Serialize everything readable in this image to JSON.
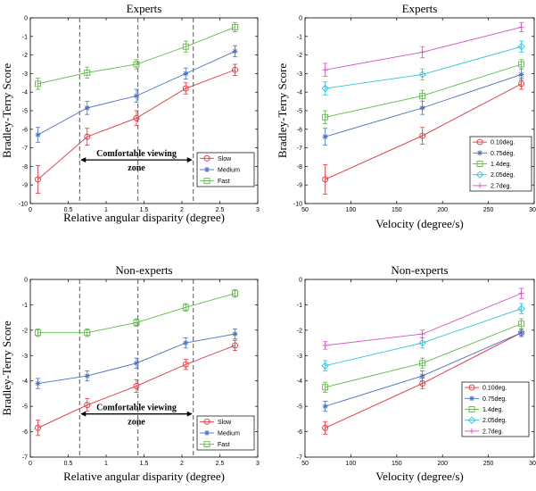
{
  "chart_data": [
    {
      "type": "line",
      "title": "Experts",
      "xlabel": "Relative angular disparity (degree)",
      "ylabel": "Bradley-Terry Score",
      "xlim": [
        0,
        3
      ],
      "ylim": [
        -10,
        0
      ],
      "xticks": [
        0,
        0.5,
        1,
        1.5,
        2,
        2.5,
        3
      ],
      "xtick_labels": [
        "0",
        "0.5",
        "1",
        "1.5",
        "2",
        "2.5",
        "3"
      ],
      "yticks": [
        -10,
        -9,
        -8,
        -7,
        -6,
        -5,
        -4,
        -3,
        -2,
        -1,
        0
      ],
      "ytick_labels": [
        "-10",
        "-9",
        "-8",
        "-7",
        "-6",
        "-5",
        "-4",
        "-3",
        "-2",
        "-1",
        "0"
      ],
      "grid": false,
      "legend_position": "bottom-right",
      "x": [
        0.1,
        0.75,
        1.4,
        2.05,
        2.7
      ],
      "series": [
        {
          "name": "Slow",
          "color": "#e8333a",
          "marker": "circle",
          "values": [
            -8.7,
            -6.4,
            -5.4,
            -3.8,
            -2.8
          ],
          "errors": [
            0.75,
            0.45,
            0.4,
            0.3,
            0.3
          ]
        },
        {
          "name": "Medium",
          "color": "#4a6fc2",
          "marker": "star",
          "values": [
            -6.3,
            -4.85,
            -4.2,
            -3.0,
            -1.8
          ],
          "errors": [
            0.4,
            0.35,
            0.35,
            0.3,
            0.3
          ]
        },
        {
          "name": "Fast",
          "color": "#5dbb46",
          "marker": "square",
          "values": [
            -3.55,
            -2.95,
            -2.5,
            -1.55,
            -0.5
          ],
          "errors": [
            0.3,
            0.3,
            0.25,
            0.3,
            0.25
          ]
        }
      ],
      "vlines": [
        0.65,
        1.42,
        2.15
      ],
      "annotation": {
        "line1": "Comfortable viewing",
        "line2": "zone",
        "from": 0.65,
        "to": 2.15,
        "y": -7.65
      }
    },
    {
      "type": "line",
      "title": "Experts",
      "xlabel": "Velocity (degree/s)",
      "ylabel": "Bradley-Terry Score",
      "xlim": [
        50,
        300
      ],
      "ylim": [
        -10,
        0
      ],
      "xticks": [
        50,
        100,
        150,
        200,
        250,
        300
      ],
      "xtick_labels": [
        "50",
        "100",
        "150",
        "200",
        "250",
        "300"
      ],
      "yticks": [
        -10,
        -9,
        -8,
        -7,
        -6,
        -5,
        -4,
        -3,
        -2,
        -1,
        0
      ],
      "ytick_labels": [
        "-10",
        "-9",
        "-8",
        "-7",
        "-6",
        "-5",
        "-4",
        "-3",
        "-2",
        "-1",
        "0"
      ],
      "grid": false,
      "legend_position": "bottom-right",
      "x": [
        72,
        178,
        286
      ],
      "series": [
        {
          "name": "0.10deg.",
          "color": "#e8333a",
          "marker": "circle",
          "values": [
            -8.7,
            -6.35,
            -3.55
          ],
          "errors": [
            0.8,
            0.45,
            0.3
          ]
        },
        {
          "name": "0.75deg.",
          "color": "#4a6fc2",
          "marker": "star",
          "values": [
            -6.4,
            -4.85,
            -3.05
          ],
          "errors": [
            0.45,
            0.35,
            0.3
          ]
        },
        {
          "name": "1.4deg.",
          "color": "#5dbb46",
          "marker": "square",
          "values": [
            -5.35,
            -4.2,
            -2.5
          ],
          "errors": [
            0.35,
            0.3,
            0.25
          ]
        },
        {
          "name": "2.05deg.",
          "color": "#2ec5df",
          "marker": "diamond",
          "values": [
            -3.8,
            -3.05,
            -1.55
          ],
          "errors": [
            0.35,
            0.3,
            0.3
          ]
        },
        {
          "name": "2.7deg.",
          "color": "#d357c4",
          "marker": "plus",
          "values": [
            -2.8,
            -1.85,
            -0.5
          ],
          "errors": [
            0.35,
            0.3,
            0.25
          ]
        }
      ]
    },
    {
      "type": "line",
      "title": "Non-experts",
      "xlabel": "Relative angular disparity (degree)",
      "ylabel": "Bradley-Terry Score",
      "xlim": [
        0,
        3
      ],
      "ylim": [
        -7,
        0
      ],
      "xticks": [
        0,
        0.5,
        1,
        1.5,
        2,
        2.5,
        3
      ],
      "xtick_labels": [
        "0",
        "0.5",
        "1",
        "1.5",
        "2",
        "2.5",
        "3"
      ],
      "yticks": [
        -7,
        -6,
        -5,
        -4,
        -3,
        -2,
        -1,
        0
      ],
      "ytick_labels": [
        "-7",
        "-6",
        "-5",
        "-4",
        "-3",
        "-2",
        "-1",
        "0"
      ],
      "grid": false,
      "legend_position": "bottom-right",
      "x": [
        0.1,
        0.75,
        1.4,
        2.05,
        2.7
      ],
      "series": [
        {
          "name": "Slow",
          "color": "#e8333a",
          "marker": "circle",
          "values": [
            -5.85,
            -4.95,
            -4.2,
            -3.35,
            -2.6
          ],
          "errors": [
            0.3,
            0.25,
            0.25,
            0.2,
            0.2
          ]
        },
        {
          "name": "Medium",
          "color": "#4a6fc2",
          "marker": "star",
          "values": [
            -4.1,
            -3.8,
            -3.3,
            -2.5,
            -2.15
          ],
          "errors": [
            0.2,
            0.2,
            0.2,
            0.2,
            0.2
          ]
        },
        {
          "name": "Fast",
          "color": "#5dbb46",
          "marker": "square",
          "values": [
            -2.1,
            -2.1,
            -1.7,
            -1.1,
            -0.55
          ],
          "errors": [
            0.15,
            0.15,
            0.15,
            0.15,
            0.15
          ]
        }
      ],
      "vlines": [
        0.65,
        1.42,
        2.15
      ],
      "annotation": {
        "line1": "Comfortable viewing",
        "line2": "zone",
        "from": 0.65,
        "to": 2.15,
        "y": -5.3
      }
    },
    {
      "type": "line",
      "title": "Non-experts",
      "xlabel": "Velocity (degree/s)",
      "ylabel": "",
      "xlim": [
        50,
        300
      ],
      "ylim": [
        -7,
        0
      ],
      "xticks": [
        50,
        100,
        150,
        200,
        250,
        300
      ],
      "xtick_labels": [
        "50",
        "100",
        "150",
        "200",
        "250",
        "300"
      ],
      "yticks": [
        -7,
        -6,
        -5,
        -4,
        -3,
        -2,
        -1,
        0
      ],
      "ytick_labels": [
        "-7",
        "-6",
        "-5",
        "-4",
        "-3",
        "-2",
        "-1",
        "0"
      ],
      "grid": false,
      "legend_position": "bottom-right",
      "x": [
        72,
        178,
        286
      ],
      "series": [
        {
          "name": "0.10deg.",
          "color": "#e8333a",
          "marker": "circle",
          "values": [
            -5.85,
            -4.1,
            -2.1
          ],
          "errors": [
            0.25,
            0.2,
            0.15
          ]
        },
        {
          "name": "0.75deg.",
          "color": "#4a6fc2",
          "marker": "star",
          "values": [
            -5.0,
            -3.8,
            -2.1
          ],
          "errors": [
            0.2,
            0.2,
            0.15
          ]
        },
        {
          "name": "1.4deg.",
          "color": "#5dbb46",
          "marker": "square",
          "values": [
            -4.25,
            -3.3,
            -1.75
          ],
          "errors": [
            0.2,
            0.2,
            0.2
          ]
        },
        {
          "name": "2.05deg.",
          "color": "#2ec5df",
          "marker": "diamond",
          "values": [
            -3.4,
            -2.5,
            -1.15
          ],
          "errors": [
            0.2,
            0.2,
            0.2
          ]
        },
        {
          "name": "2.7deg.",
          "color": "#d357c4",
          "marker": "plus",
          "values": [
            -2.6,
            -2.15,
            -0.55
          ],
          "errors": [
            0.15,
            0.15,
            0.2
          ]
        }
      ]
    }
  ]
}
